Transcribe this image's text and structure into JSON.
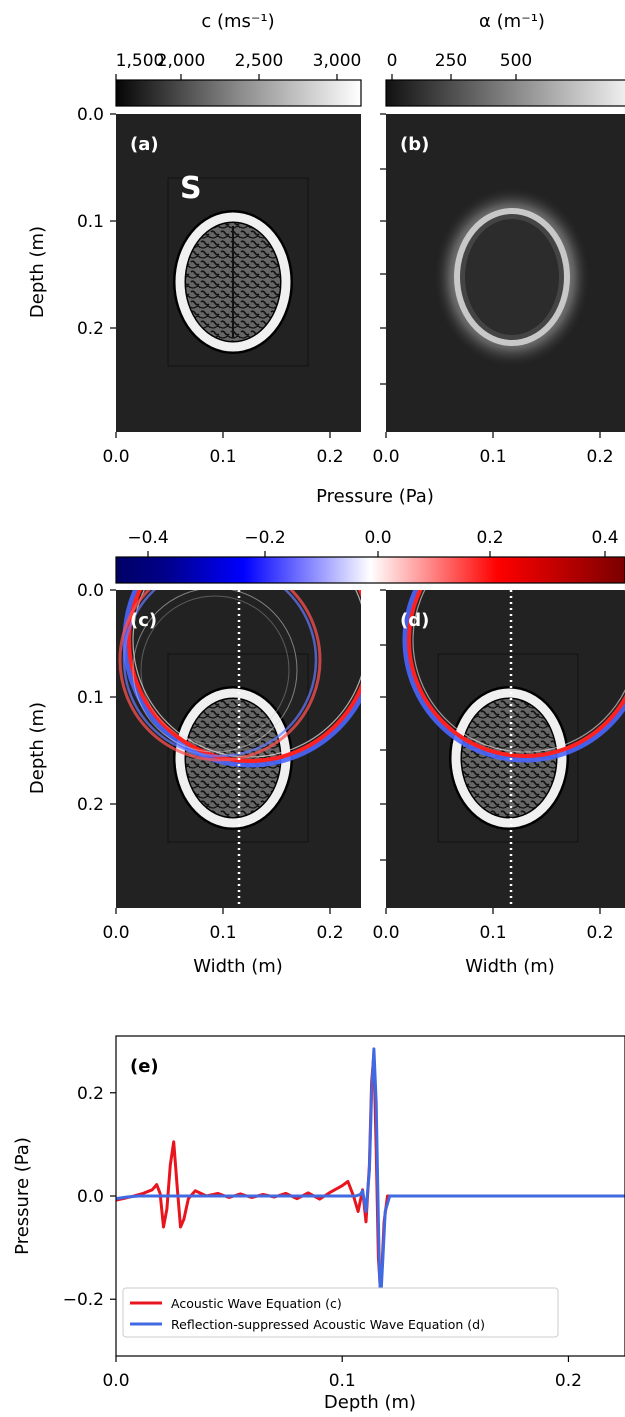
{
  "colorbars": {
    "speed": {
      "label": "c (ms⁻¹)",
      "ticks": [
        "1,500",
        "2,000",
        "2,500",
        "3,000"
      ]
    },
    "attenuation": {
      "label": "α (m⁻¹)",
      "ticks": [
        "0",
        "250",
        "500"
      ]
    },
    "pressure": {
      "label": "Pressure (Pa)",
      "ticks": [
        "−0.4",
        "−0.2",
        "0.0",
        "0.2",
        "0.4"
      ]
    }
  },
  "panels": {
    "a": {
      "tag": "(a)",
      "annotation": "S"
    },
    "b": {
      "tag": "(b)"
    },
    "c": {
      "tag": "(c)"
    },
    "d": {
      "tag": "(d)"
    },
    "e": {
      "tag": "(e)"
    }
  },
  "axes": {
    "depth_label": "Depth (m)",
    "width_label": "Width (m)",
    "depth_ticks": [
      "0.0",
      "0.1",
      "0.2"
    ],
    "width_ticks": [
      "0.0",
      "0.1",
      "0.2"
    ]
  },
  "chart_data": {
    "type": "line",
    "xlabel": "Depth (m)",
    "ylabel": "Pressure (Pa)",
    "xlim": [
      0,
      0.225
    ],
    "ylim": [
      -0.31,
      0.31
    ],
    "xticks": [
      "0.0",
      "0.1",
      "0.2"
    ],
    "yticks": [
      "−0.2",
      "0.0",
      "0.2"
    ],
    "series": [
      {
        "name": "Acoustic Wave Equation (c)",
        "color": "#e8141e",
        "x": [
          0,
          0.004,
          0.008,
          0.012,
          0.016,
          0.018,
          0.0195,
          0.021,
          0.0225,
          0.024,
          0.0255,
          0.027,
          0.0285,
          0.03,
          0.032,
          0.035,
          0.04,
          0.045,
          0.05,
          0.055,
          0.06,
          0.065,
          0.07,
          0.075,
          0.08,
          0.085,
          0.09,
          0.095,
          0.1,
          0.1025,
          0.105,
          0.107,
          0.109,
          0.1105,
          0.112,
          0.113,
          0.114,
          0.115,
          0.116,
          0.117,
          0.1185,
          0.12,
          0.125,
          0.15,
          0.2,
          0.225
        ],
        "y": [
          -0.008,
          -0.004,
          0.0,
          0.005,
          0.012,
          0.022,
          0.005,
          -0.06,
          -0.025,
          0.06,
          0.105,
          0.02,
          -0.06,
          -0.045,
          -0.005,
          0.01,
          0.0,
          0.005,
          -0.003,
          0.004,
          -0.003,
          0.003,
          -0.002,
          0.005,
          -0.005,
          0.006,
          -0.006,
          0.008,
          0.02,
          0.028,
          0.0,
          -0.03,
          0.012,
          -0.05,
          0.06,
          0.22,
          0.275,
          0.09,
          -0.12,
          -0.19,
          -0.05,
          0.0,
          0.0,
          0.0,
          0.0,
          0.0
        ]
      },
      {
        "name": "Reflection-suppressed Acoustic Wave Equation (d)",
        "color": "#4169e1",
        "x": [
          0,
          0.005,
          0.01,
          0.02,
          0.04,
          0.06,
          0.08,
          0.1,
          0.106,
          0.108,
          0.109,
          0.1105,
          0.112,
          0.113,
          0.114,
          0.115,
          0.116,
          0.1165,
          0.117,
          0.118,
          0.119,
          0.121,
          0.125,
          0.15,
          0.2,
          0.225
        ],
        "y": [
          -0.005,
          -0.002,
          0.0,
          0.0,
          0.0,
          0.0,
          0.0,
          0.0,
          0.0,
          0.003,
          0.01,
          -0.03,
          0.05,
          0.2,
          0.285,
          0.18,
          -0.05,
          -0.15,
          -0.2,
          -0.12,
          -0.03,
          0.0,
          0.0,
          0.0,
          0.0,
          0.0
        ]
      }
    ]
  }
}
